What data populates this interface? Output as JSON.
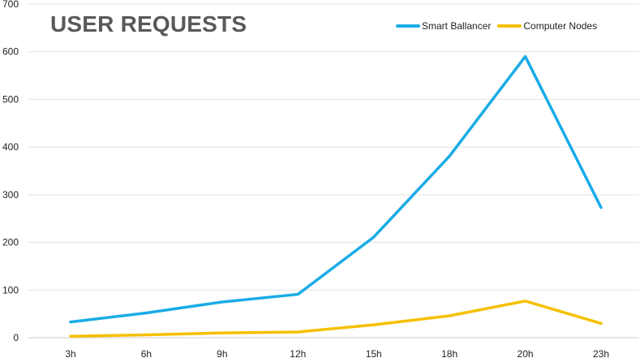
{
  "chart_data": {
    "type": "line",
    "title": "USER REQUESTS",
    "xlabel": "",
    "ylabel": "",
    "categories": [
      "3h",
      "6h",
      "9h",
      "12h",
      "15h",
      "18h",
      "20h",
      "23h"
    ],
    "ylim": [
      0,
      700
    ],
    "yticks": [
      "0",
      "100",
      "200",
      "300",
      "400",
      "500",
      "600",
      "700"
    ],
    "grid": true,
    "legend_position": "top-right",
    "series": [
      {
        "name": "Smart Ballancer",
        "color": "#1AACE6",
        "values": [
          33,
          52,
          75,
          91,
          211,
          381,
          590,
          273
        ]
      },
      {
        "name": "Computer Nodes",
        "color": "#F5C000",
        "values": [
          3,
          6,
          10,
          12,
          27,
          46,
          77,
          30
        ]
      }
    ]
  }
}
